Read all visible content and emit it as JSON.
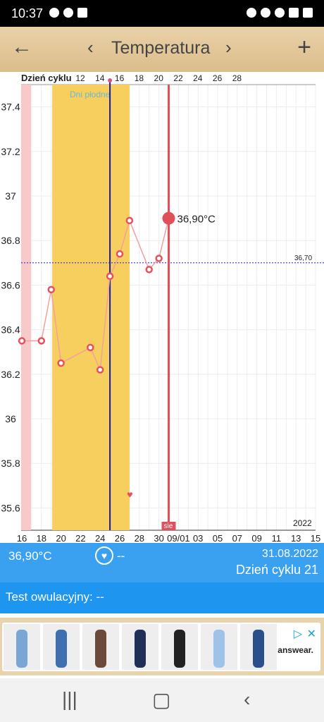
{
  "status": {
    "time": "10:37"
  },
  "appbar": {
    "title": "Temperatura",
    "back_icon": "arrow-left-icon",
    "prev_icon": "chevron-left-icon",
    "next_icon": "chevron-right-icon",
    "add_icon": "plus-icon"
  },
  "chart_data": {
    "type": "line",
    "top_axis_label": "Dzień cyklu",
    "top_ticks": [
      "12",
      "14",
      "16",
      "18",
      "20",
      "22",
      "24",
      "26",
      "28"
    ],
    "x": [
      "16",
      "18",
      "20",
      "22",
      "24",
      "26",
      "28",
      "30",
      "09/01",
      "03",
      "05",
      "07",
      "09",
      "11",
      "13",
      "15"
    ],
    "y_ticks": [
      "37.4",
      "37.2",
      "37",
      "36.8",
      "36.6",
      "36.4",
      "36.2",
      "36",
      "35.8",
      "35.6"
    ],
    "ylim": [
      35.5,
      37.5
    ],
    "fertile_label": "Dni płodne",
    "reference_value": "36,70",
    "reference_line": 36.7,
    "selected_value_label": "36,90°C",
    "marker_label": "sie",
    "year_label": "2022",
    "points": [
      {
        "x": "16",
        "y": 36.35
      },
      {
        "x": "18",
        "y": 36.35
      },
      {
        "x": "19",
        "y": 36.58
      },
      {
        "x": "20",
        "y": 36.25
      },
      {
        "x": "23",
        "y": 36.32
      },
      {
        "x": "24",
        "y": 36.22
      },
      {
        "x": "25",
        "y": 36.64
      },
      {
        "x": "26",
        "y": 36.74
      },
      {
        "x": "27",
        "y": 36.89
      },
      {
        "x": "29",
        "y": 36.67
      },
      {
        "x": "30",
        "y": 36.72
      },
      {
        "x": "31",
        "y": 36.9
      }
    ],
    "colors": {
      "line": "#f2a0a0",
      "marker": "#e8505b",
      "fertile": "#f7cf5e",
      "ovulation": "#1a1aa0",
      "selected": "#e0505b",
      "period": "#f7c9c9",
      "reference": "#2020d0"
    }
  },
  "info": {
    "temperature": "36,90°C",
    "ovulation_value": "--",
    "date": "31.08.2022",
    "cycle_day": "Dzień cyklu 21",
    "heart_icon": "heart-icon"
  },
  "ovulation_test": {
    "label": "Test owulacyjny: --"
  },
  "ad": {
    "brand": "answear."
  },
  "nav": {
    "recent_icon": "recent-apps-icon",
    "home_icon": "home-icon",
    "back_icon": "back-icon"
  }
}
